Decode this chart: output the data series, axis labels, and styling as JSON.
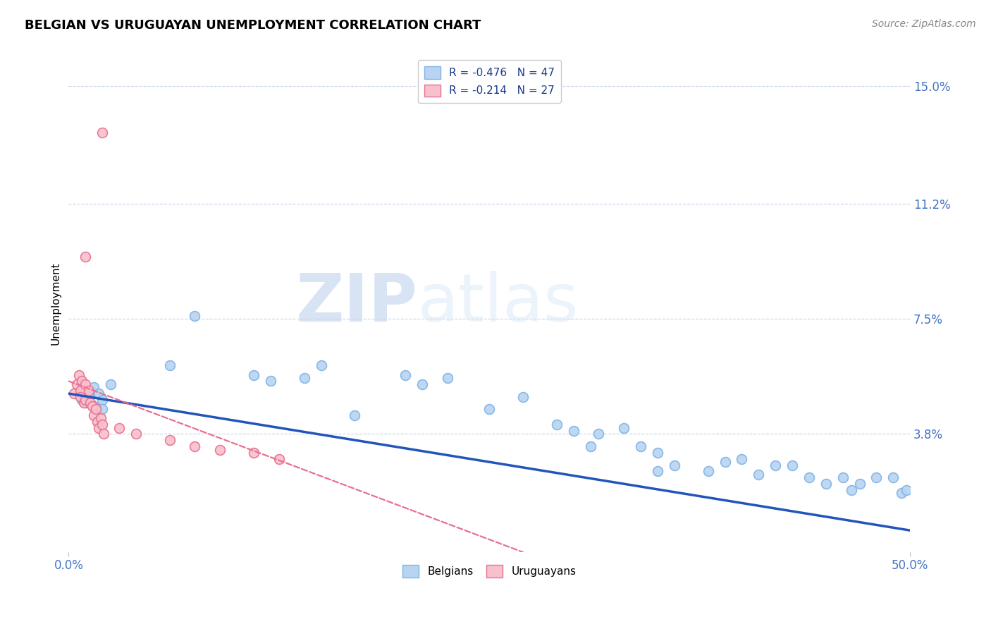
{
  "title": "BELGIAN VS URUGUAYAN UNEMPLOYMENT CORRELATION CHART",
  "source": "Source: ZipAtlas.com",
  "ylabel": "Unemployment",
  "xlim": [
    0.0,
    0.5
  ],
  "ylim": [
    0.0,
    0.16
  ],
  "yticks": [
    0.0,
    0.038,
    0.075,
    0.112,
    0.15
  ],
  "ytick_labels": [
    "",
    "3.8%",
    "7.5%",
    "11.2%",
    "15.0%"
  ],
  "xtick_labels": [
    "0.0%",
    "50.0%"
  ],
  "xticks": [
    0.0,
    0.5
  ],
  "background_color": "#ffffff",
  "legend_entries": [
    {
      "label": "R = -0.476   N = 47",
      "color": "#7fb3e8"
    },
    {
      "label": "R = -0.214   N = 27",
      "color": "#f4a0b0"
    }
  ],
  "legend_bottom": [
    {
      "label": "Belgians",
      "color": "#aaccf0"
    },
    {
      "label": "Uruguayans",
      "color": "#f4a0b0"
    }
  ],
  "blue_scatter": [
    [
      0.008,
      0.051
    ],
    [
      0.008,
      0.049
    ],
    [
      0.01,
      0.052
    ],
    [
      0.01,
      0.048
    ],
    [
      0.012,
      0.05
    ],
    [
      0.015,
      0.053
    ],
    [
      0.015,
      0.047
    ],
    [
      0.018,
      0.051
    ],
    [
      0.02,
      0.049
    ],
    [
      0.02,
      0.046
    ],
    [
      0.025,
      0.054
    ],
    [
      0.06,
      0.06
    ],
    [
      0.075,
      0.076
    ],
    [
      0.11,
      0.057
    ],
    [
      0.12,
      0.055
    ],
    [
      0.14,
      0.056
    ],
    [
      0.15,
      0.06
    ],
    [
      0.17,
      0.044
    ],
    [
      0.2,
      0.057
    ],
    [
      0.21,
      0.054
    ],
    [
      0.225,
      0.056
    ],
    [
      0.25,
      0.046
    ],
    [
      0.27,
      0.05
    ],
    [
      0.29,
      0.041
    ],
    [
      0.3,
      0.039
    ],
    [
      0.31,
      0.034
    ],
    [
      0.315,
      0.038
    ],
    [
      0.33,
      0.04
    ],
    [
      0.34,
      0.034
    ],
    [
      0.35,
      0.026
    ],
    [
      0.35,
      0.032
    ],
    [
      0.36,
      0.028
    ],
    [
      0.38,
      0.026
    ],
    [
      0.39,
      0.029
    ],
    [
      0.4,
      0.03
    ],
    [
      0.41,
      0.025
    ],
    [
      0.42,
      0.028
    ],
    [
      0.43,
      0.028
    ],
    [
      0.44,
      0.024
    ],
    [
      0.45,
      0.022
    ],
    [
      0.46,
      0.024
    ],
    [
      0.465,
      0.02
    ],
    [
      0.47,
      0.022
    ],
    [
      0.48,
      0.024
    ],
    [
      0.49,
      0.024
    ],
    [
      0.495,
      0.019
    ],
    [
      0.498,
      0.02
    ]
  ],
  "pink_scatter": [
    [
      0.003,
      0.051
    ],
    [
      0.005,
      0.054
    ],
    [
      0.006,
      0.057
    ],
    [
      0.007,
      0.052
    ],
    [
      0.007,
      0.05
    ],
    [
      0.008,
      0.055
    ],
    [
      0.009,
      0.048
    ],
    [
      0.01,
      0.054
    ],
    [
      0.01,
      0.049
    ],
    [
      0.012,
      0.052
    ],
    [
      0.013,
      0.048
    ],
    [
      0.014,
      0.047
    ],
    [
      0.015,
      0.044
    ],
    [
      0.016,
      0.046
    ],
    [
      0.017,
      0.042
    ],
    [
      0.018,
      0.04
    ],
    [
      0.019,
      0.043
    ],
    [
      0.02,
      0.041
    ],
    [
      0.021,
      0.038
    ],
    [
      0.03,
      0.04
    ],
    [
      0.04,
      0.038
    ],
    [
      0.06,
      0.036
    ],
    [
      0.075,
      0.034
    ],
    [
      0.09,
      0.033
    ],
    [
      0.11,
      0.032
    ],
    [
      0.125,
      0.03
    ]
  ],
  "pink_outlier1": [
    0.02,
    0.135
  ],
  "pink_outlier2": [
    0.01,
    0.095
  ],
  "blue_line_x": [
    0.0,
    0.5
  ],
  "blue_line_y": [
    0.051,
    0.007
  ],
  "pink_line_x": [
    0.0,
    0.27
  ],
  "pink_line_y": [
    0.055,
    0.0
  ],
  "title_fontsize": 13,
  "tick_color": "#4472c4",
  "grid_color": "#c8d4e8",
  "scatter_size": 100
}
